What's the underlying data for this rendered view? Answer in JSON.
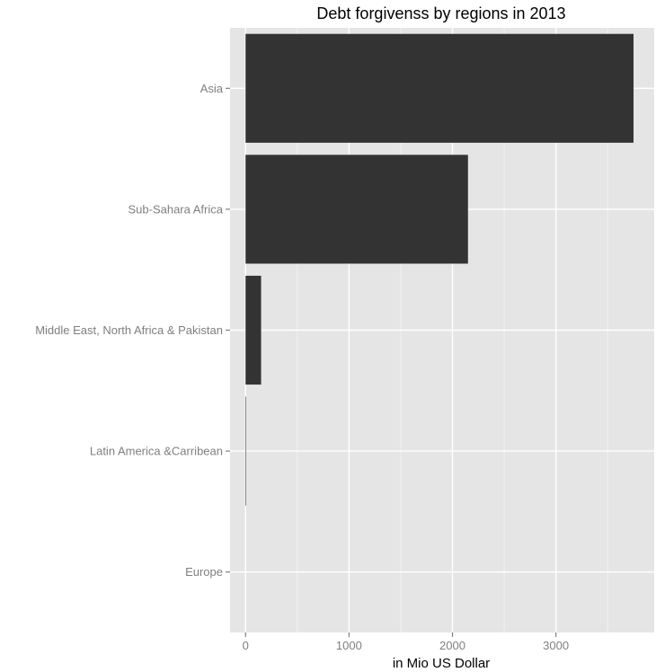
{
  "chart_data": {
    "type": "bar",
    "orientation": "horizontal",
    "title": "Debt forgivenss by regions in 2013",
    "xlabel": "in Mio US Dollar",
    "ylabel": "",
    "categories": [
      "Asia",
      "Sub-Sahara Africa",
      "Middle East, North Africa & Pakistan",
      "Latin America &Carribean",
      "Europe"
    ],
    "values": [
      3750,
      2150,
      150,
      5,
      0
    ],
    "xlim": [
      -150,
      3950
    ],
    "xticks": [
      0,
      1000,
      2000,
      3000
    ],
    "grid": true,
    "legend": "none",
    "colors": {
      "bar": "#333333",
      "panel": "#e5e5e5",
      "grid_major": "#ffffff",
      "grid_minor": "#f2f2f2",
      "tick_text": "#7f7f7f"
    }
  }
}
